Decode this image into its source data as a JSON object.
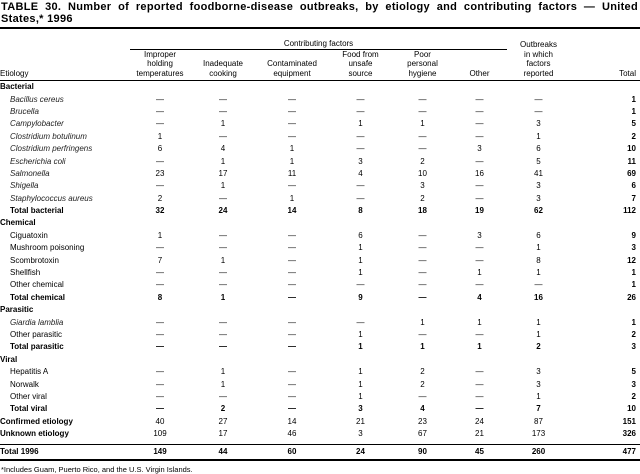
{
  "title": "TABLE 30. Number of reported foodborne-disease outbreaks, by etiology and contributing factors — United States,* 1996",
  "header": {
    "contributing_factors": "Contributing factors",
    "etiology": "Etiology",
    "columns": [
      "Improper holding temperatures",
      "Inadequate cooking",
      "Contaminated equipment",
      "Food from unsafe source",
      "Poor personal hygiene",
      "Other",
      "Outbreaks in which factors reported",
      "Total"
    ]
  },
  "rows": [
    {
      "type": "group",
      "label": "Bacterial"
    },
    {
      "type": "item",
      "italic": true,
      "label": "Bacillus cereus",
      "values": [
        "—",
        "—",
        "—",
        "—",
        "—",
        "—",
        "—",
        "1"
      ]
    },
    {
      "type": "item",
      "italic": true,
      "label": "Brucella",
      "values": [
        "—",
        "—",
        "—",
        "—",
        "—",
        "—",
        "—",
        "1"
      ]
    },
    {
      "type": "item",
      "italic": true,
      "label": "Campylobacter",
      "values": [
        "—",
        "1",
        "—",
        "1",
        "1",
        "—",
        "3",
        "5"
      ]
    },
    {
      "type": "item",
      "italic": true,
      "label": "Clostridium botulinum",
      "values": [
        "1",
        "—",
        "—",
        "—",
        "—",
        "—",
        "1",
        "2"
      ]
    },
    {
      "type": "item",
      "italic": true,
      "label": "Clostridium perfringens",
      "values": [
        "6",
        "4",
        "1",
        "—",
        "—",
        "3",
        "6",
        "10"
      ]
    },
    {
      "type": "item",
      "italic": true,
      "label": "Escherichia coli",
      "values": [
        "—",
        "1",
        "1",
        "3",
        "2",
        "—",
        "5",
        "11"
      ]
    },
    {
      "type": "item",
      "italic": true,
      "label": "Salmonella",
      "values": [
        "23",
        "17",
        "11",
        "4",
        "10",
        "16",
        "41",
        "69"
      ]
    },
    {
      "type": "item",
      "italic": true,
      "label": "Shigella",
      "values": [
        "—",
        "1",
        "—",
        "—",
        "3",
        "—",
        "3",
        "6"
      ]
    },
    {
      "type": "item",
      "italic": true,
      "label": "Staphylococcus aureus",
      "values": [
        "2",
        "—",
        "1",
        "—",
        "2",
        "—",
        "3",
        "7"
      ]
    },
    {
      "type": "total",
      "label": "Total bacterial",
      "values": [
        "32",
        "24",
        "14",
        "8",
        "18",
        "19",
        "62",
        "112"
      ]
    },
    {
      "type": "group",
      "label": "Chemical"
    },
    {
      "type": "item",
      "label": "Ciguatoxin",
      "values": [
        "1",
        "—",
        "—",
        "6",
        "—",
        "3",
        "6",
        "9"
      ]
    },
    {
      "type": "item",
      "label": "Mushroom poisoning",
      "values": [
        "—",
        "—",
        "—",
        "1",
        "—",
        "—",
        "1",
        "3"
      ]
    },
    {
      "type": "item",
      "label": "Scombrotoxin",
      "values": [
        "7",
        "1",
        "—",
        "1",
        "—",
        "—",
        "8",
        "12"
      ]
    },
    {
      "type": "item",
      "label": "Shellfish",
      "values": [
        "—",
        "—",
        "—",
        "1",
        "—",
        "1",
        "1",
        "1"
      ]
    },
    {
      "type": "item",
      "label": "Other chemical",
      "values": [
        "—",
        "—",
        "—",
        "—",
        "—",
        "—",
        "—",
        "1"
      ]
    },
    {
      "type": "total",
      "label": "Total chemical",
      "values": [
        "8",
        "1",
        "—",
        "9",
        "—",
        "4",
        "16",
        "26"
      ]
    },
    {
      "type": "group",
      "label": "Parasitic"
    },
    {
      "type": "item",
      "italic": true,
      "label": "Giardia lamblia",
      "values": [
        "—",
        "—",
        "—",
        "—",
        "1",
        "1",
        "1",
        "1"
      ]
    },
    {
      "type": "item",
      "label": "Other parasitic",
      "values": [
        "—",
        "—",
        "—",
        "1",
        "—",
        "—",
        "1",
        "2"
      ]
    },
    {
      "type": "total",
      "label": "Total parasitic",
      "values": [
        "—",
        "—",
        "—",
        "1",
        "1",
        "1",
        "2",
        "3"
      ]
    },
    {
      "type": "group",
      "label": "Viral"
    },
    {
      "type": "item",
      "label": "Hepatitis A",
      "values": [
        "—",
        "1",
        "—",
        "1",
        "2",
        "—",
        "3",
        "5"
      ]
    },
    {
      "type": "item",
      "label": "Norwalk",
      "values": [
        "—",
        "1",
        "—",
        "1",
        "2",
        "—",
        "3",
        "3"
      ]
    },
    {
      "type": "item",
      "label": "Other viral",
      "values": [
        "—",
        "—",
        "—",
        "1",
        "—",
        "—",
        "1",
        "2"
      ]
    },
    {
      "type": "total",
      "label": "Total viral",
      "values": [
        "—",
        "2",
        "—",
        "3",
        "4",
        "—",
        "7",
        "10"
      ]
    },
    {
      "type": "summary",
      "label": "Confirmed etiology",
      "values": [
        "40",
        "27",
        "14",
        "21",
        "23",
        "24",
        "87",
        "151"
      ]
    },
    {
      "type": "summary",
      "label": "Unknown etiology",
      "values": [
        "109",
        "17",
        "46",
        "3",
        "67",
        "21",
        "173",
        "326"
      ]
    },
    {
      "type": "grand",
      "label": "Total 1996",
      "values": [
        "149",
        "44",
        "60",
        "24",
        "90",
        "45",
        "260",
        "477"
      ]
    }
  ],
  "footnote": "*Includes Guam, Puerto Rico, and the U.S. Virgin Islands."
}
